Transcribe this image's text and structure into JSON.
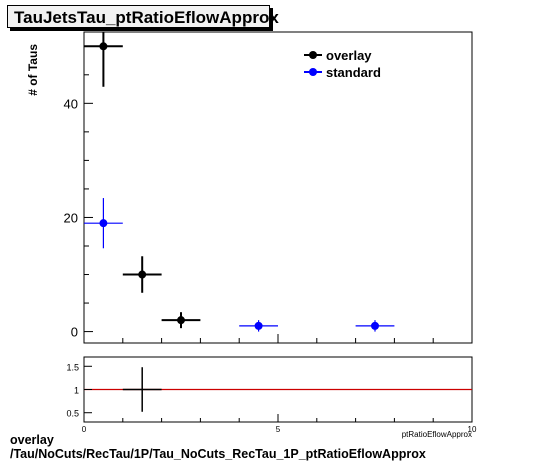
{
  "title": "TauJetsTau_ptRatioEflowApprox",
  "footer": {
    "line1": "overlay",
    "line2": "/Tau/NoCuts/RecTau/1P/Tau_NoCuts_RecTau_1P_ptRatioEflowApprox"
  },
  "colors": {
    "overlay": "#000000",
    "standard": "#0000ff",
    "ratio_line": "#cc0000"
  },
  "chart_data": [
    {
      "type": "scatter",
      "panel": "main",
      "ylabel": "# of Taus",
      "xlim": [
        0,
        10
      ],
      "ylim": [
        -2,
        52.5
      ],
      "yticks": [
        0,
        20,
        40
      ],
      "legend_position": "top-right",
      "series": [
        {
          "name": "overlay",
          "points": [
            {
              "x": 0.5,
              "y": 50,
              "xerr": 0.5,
              "yerr": 7.1
            },
            {
              "x": 1.5,
              "y": 10,
              "xerr": 0.5,
              "yerr": 3.2
            },
            {
              "x": 2.5,
              "y": 2,
              "xerr": 0.5,
              "yerr": 1.4
            }
          ]
        },
        {
          "name": "standard",
          "points": [
            {
              "x": 0.5,
              "y": 19,
              "xerr": 0.5,
              "yerr": 4.4
            },
            {
              "x": 4.5,
              "y": 1,
              "xerr": 0.5,
              "yerr": 1.0
            },
            {
              "x": 7.5,
              "y": 1,
              "xerr": 0.5,
              "yerr": 1.0
            }
          ]
        }
      ]
    },
    {
      "type": "scatter",
      "panel": "ratio",
      "xlabel": "ptRatioEflowApprox",
      "xlim": [
        0,
        10
      ],
      "ylim": [
        0.3,
        1.7
      ],
      "xticks": [
        0,
        5,
        10
      ],
      "yticks": [
        0.5,
        1,
        1.5
      ],
      "reference_line": 1,
      "series": [
        {
          "name": "ratio",
          "points": [
            {
              "x": 1.5,
              "y": 1.0,
              "xerr": 0.5,
              "yerr": 0.48
            }
          ]
        }
      ]
    }
  ]
}
